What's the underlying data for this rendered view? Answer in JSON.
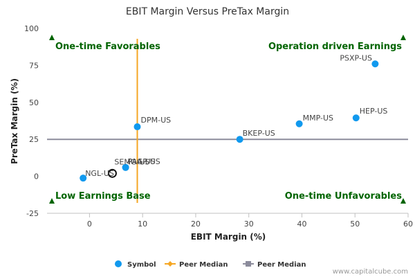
{
  "chart_data": {
    "type": "scatter",
    "title": "EBIT Margin Versus PreTax Margin",
    "xlabel": "EBIT Margin (%)",
    "ylabel": "PreTax Margin (%)",
    "xlim": [
      -8,
      60
    ],
    "ylim": [
      -25,
      100
    ],
    "xticks": [
      0,
      10,
      20,
      30,
      40,
      50,
      60
    ],
    "yticks": [
      -25,
      0,
      25,
      50,
      75,
      100
    ],
    "grid": false,
    "legend_position": "bottom",
    "points": [
      {
        "label": "PSXP-US",
        "x": 53.8,
        "y": 76
      },
      {
        "label": "HEP-US",
        "x": 50.2,
        "y": 39.5
      },
      {
        "label": "MMP-US",
        "x": 39.5,
        "y": 35.5
      },
      {
        "label": "BKEP-US",
        "x": 28.3,
        "y": 25
      },
      {
        "label": "DPM-US",
        "x": 9,
        "y": 33.5
      },
      {
        "label": "PAA-US",
        "x": 6.8,
        "y": 6
      },
      {
        "label": "PAGP-US",
        "x": 6.8,
        "y": 6
      },
      {
        "label": "SEMG-US",
        "x": 4.3,
        "y": 2
      },
      {
        "label": "NGL-US",
        "x": -1.2,
        "y": -1.2
      }
    ],
    "highlighted_label": "SEMG-US",
    "peer_median_x": 9,
    "peer_median_y": 25,
    "quadrant_labels": {
      "top_left": "One-time Favorables",
      "top_right": "Operation driven Earnings",
      "bottom_left": "Low Earnings Base",
      "bottom_right": "One-time Unfavorables"
    },
    "legend": [
      {
        "name": "Symbol",
        "marker": "circle",
        "color": "#1199ee"
      },
      {
        "name": "Peer Median",
        "marker": "diamond",
        "color": "#f5a623"
      },
      {
        "name": "Peer Median",
        "marker": "square",
        "color": "#8c8c9c"
      }
    ]
  },
  "colors": {
    "point": "#1199ee",
    "median_x_line": "#f5a623",
    "median_y_line": "#8c8c9c",
    "quadrant_text": "#006400",
    "quadrant_arrow": "#006400"
  },
  "credit": "www.capitalcube.com"
}
